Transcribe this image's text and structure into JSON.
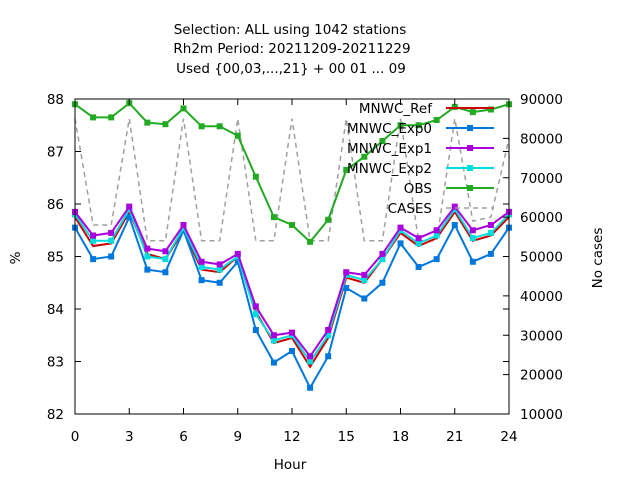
{
  "chart_data": {
    "type": "line",
    "title_lines": [
      "Selection: ALL using  1042 stations",
      "Rh2m   Period: 20211209-20211229",
      "Used {00,03,...,21} + 00 01 ... 09"
    ],
    "xlabel": "Hour",
    "ylabel": "%",
    "y2label": "No cases",
    "xlim": [
      0,
      24
    ],
    "ylim": [
      82,
      88
    ],
    "y2lim": [
      10000,
      90000
    ],
    "xticks": [
      0,
      3,
      6,
      9,
      12,
      15,
      18,
      21,
      24
    ],
    "yticks": [
      82,
      83,
      84,
      85,
      86,
      87,
      88
    ],
    "y2ticks": [
      10000,
      20000,
      30000,
      40000,
      50000,
      60000,
      70000,
      80000,
      90000
    ],
    "legend_position": "top-right",
    "grid": false,
    "x": [
      0,
      1,
      2,
      3,
      4,
      5,
      6,
      7,
      8,
      9,
      10,
      11,
      12,
      13,
      14,
      15,
      16,
      17,
      18,
      19,
      20,
      21,
      22,
      23,
      24
    ],
    "series": [
      {
        "name": "MNWC_Ref",
        "axis": "y",
        "color": "#cc0000",
        "marker": "none",
        "dash": false,
        "values": [
          85.75,
          85.2,
          85.25,
          85.85,
          85.05,
          84.95,
          85.5,
          84.75,
          84.7,
          85.0,
          83.95,
          83.35,
          83.45,
          82.9,
          83.45,
          84.6,
          84.5,
          84.95,
          85.45,
          85.2,
          85.35,
          85.85,
          85.3,
          85.4,
          85.75
        ]
      },
      {
        "name": "MNWC_Exp0",
        "axis": "y",
        "color": "#0077dd",
        "marker": "square",
        "dash": false,
        "values": [
          85.55,
          84.95,
          85.0,
          85.75,
          84.75,
          84.7,
          85.5,
          84.55,
          84.5,
          84.9,
          83.6,
          82.98,
          83.2,
          82.5,
          83.1,
          84.4,
          84.2,
          84.5,
          85.25,
          84.8,
          84.95,
          85.6,
          84.9,
          85.05,
          85.55
        ]
      },
      {
        "name": "MNWC_Exp1",
        "axis": "y",
        "color": "#aa00dd",
        "marker": "square",
        "dash": false,
        "values": [
          85.85,
          85.4,
          85.45,
          85.95,
          85.15,
          85.1,
          85.6,
          84.9,
          84.85,
          85.05,
          84.05,
          83.5,
          83.55,
          83.1,
          83.6,
          84.7,
          84.65,
          85.05,
          85.55,
          85.35,
          85.5,
          85.95,
          85.5,
          85.6,
          85.85
        ]
      },
      {
        "name": "MNWC_Exp2",
        "axis": "y",
        "color": "#00dddd",
        "marker": "square",
        "dash": false,
        "values": [
          85.8,
          85.3,
          85.3,
          85.9,
          85.0,
          84.95,
          85.55,
          84.8,
          84.75,
          85.0,
          83.9,
          83.4,
          83.5,
          83.0,
          83.5,
          84.65,
          84.55,
          84.95,
          85.5,
          85.25,
          85.4,
          85.9,
          85.35,
          85.45,
          85.8
        ]
      },
      {
        "name": "OBS",
        "axis": "y",
        "color": "#22aa22",
        "marker": "square",
        "dash": false,
        "values": [
          87.9,
          87.65,
          87.65,
          87.92,
          87.55,
          87.52,
          87.82,
          87.48,
          87.48,
          87.3,
          86.52,
          85.75,
          85.6,
          85.28,
          85.7,
          86.65,
          86.9,
          87.2,
          87.5,
          87.5,
          87.6,
          87.85,
          87.75,
          87.8,
          87.9
        ]
      },
      {
        "name": "CASES",
        "axis": "y2",
        "color": "#a0a0a0",
        "marker": "none",
        "dash": true,
        "values": [
          85000,
          58000,
          58000,
          85000,
          54000,
          54000,
          85000,
          54000,
          54000,
          85000,
          54000,
          54000,
          85000,
          54000,
          54000,
          85000,
          54000,
          54000,
          85000,
          54000,
          54000,
          85000,
          59000,
          60000,
          80000
        ]
      }
    ]
  }
}
